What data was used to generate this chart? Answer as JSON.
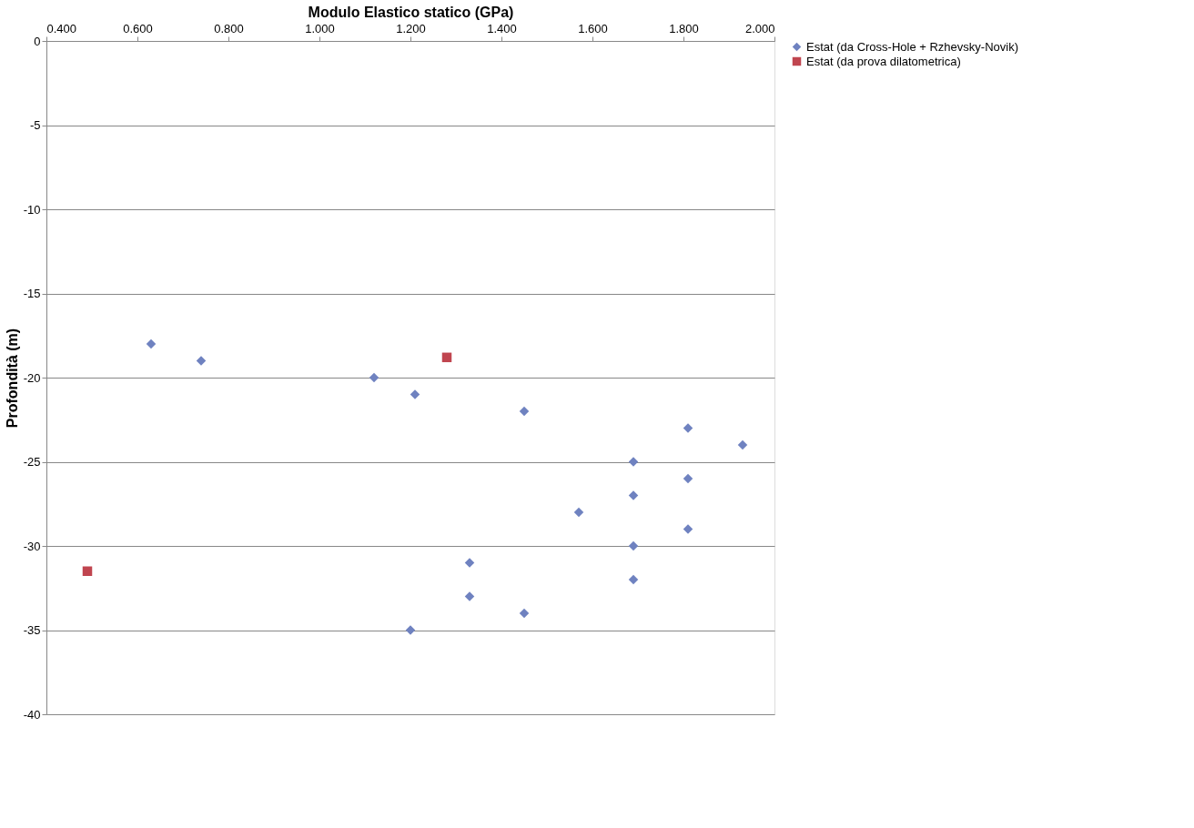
{
  "chart_data": {
    "type": "scatter",
    "xlabel": "Modulo Elastico statico (GPa)",
    "ylabel": "Profondità (m)",
    "xlim": [
      0.4,
      2.0
    ],
    "xticks": [
      {
        "value": 0.4,
        "label": "0.400"
      },
      {
        "value": 0.6,
        "label": "0.600"
      },
      {
        "value": 0.8,
        "label": "0.800"
      },
      {
        "value": 1.0,
        "label": "1.000"
      },
      {
        "value": 1.2,
        "label": "1.200"
      },
      {
        "value": 1.4,
        "label": "1.400"
      },
      {
        "value": 1.6,
        "label": "1.600"
      },
      {
        "value": 1.8,
        "label": "1.800"
      },
      {
        "value": 2.0,
        "label": "2.000"
      }
    ],
    "ylim": [
      -40,
      0
    ],
    "yticks": [
      0,
      -5,
      -10,
      -15,
      -20,
      -25,
      -30,
      -35,
      -40
    ],
    "grid": "y",
    "legend": "right",
    "series": [
      {
        "name": "Estat (da Cross-Hole + Rzhevsky-Novik)",
        "color": "#6f82c0",
        "marker": "diamond",
        "x": [
          0.63,
          0.74,
          1.12,
          1.21,
          1.45,
          1.81,
          1.93,
          1.69,
          1.81,
          1.69,
          1.57,
          1.81,
          1.69,
          1.33,
          1.69,
          1.33,
          1.45,
          1.2
        ],
        "values": [
          -18,
          -19,
          -20,
          -21,
          -22,
          -23,
          -24,
          -25,
          -26,
          -27,
          -28,
          -29,
          -30,
          -31,
          -32,
          -33,
          -34,
          -35
        ]
      },
      {
        "name": "Estat (da prova dilatometrica)",
        "color": "#c0454f",
        "marker": "square",
        "x": [
          1.28,
          0.49
        ],
        "values": [
          -18.8,
          -31.5
        ]
      }
    ]
  }
}
